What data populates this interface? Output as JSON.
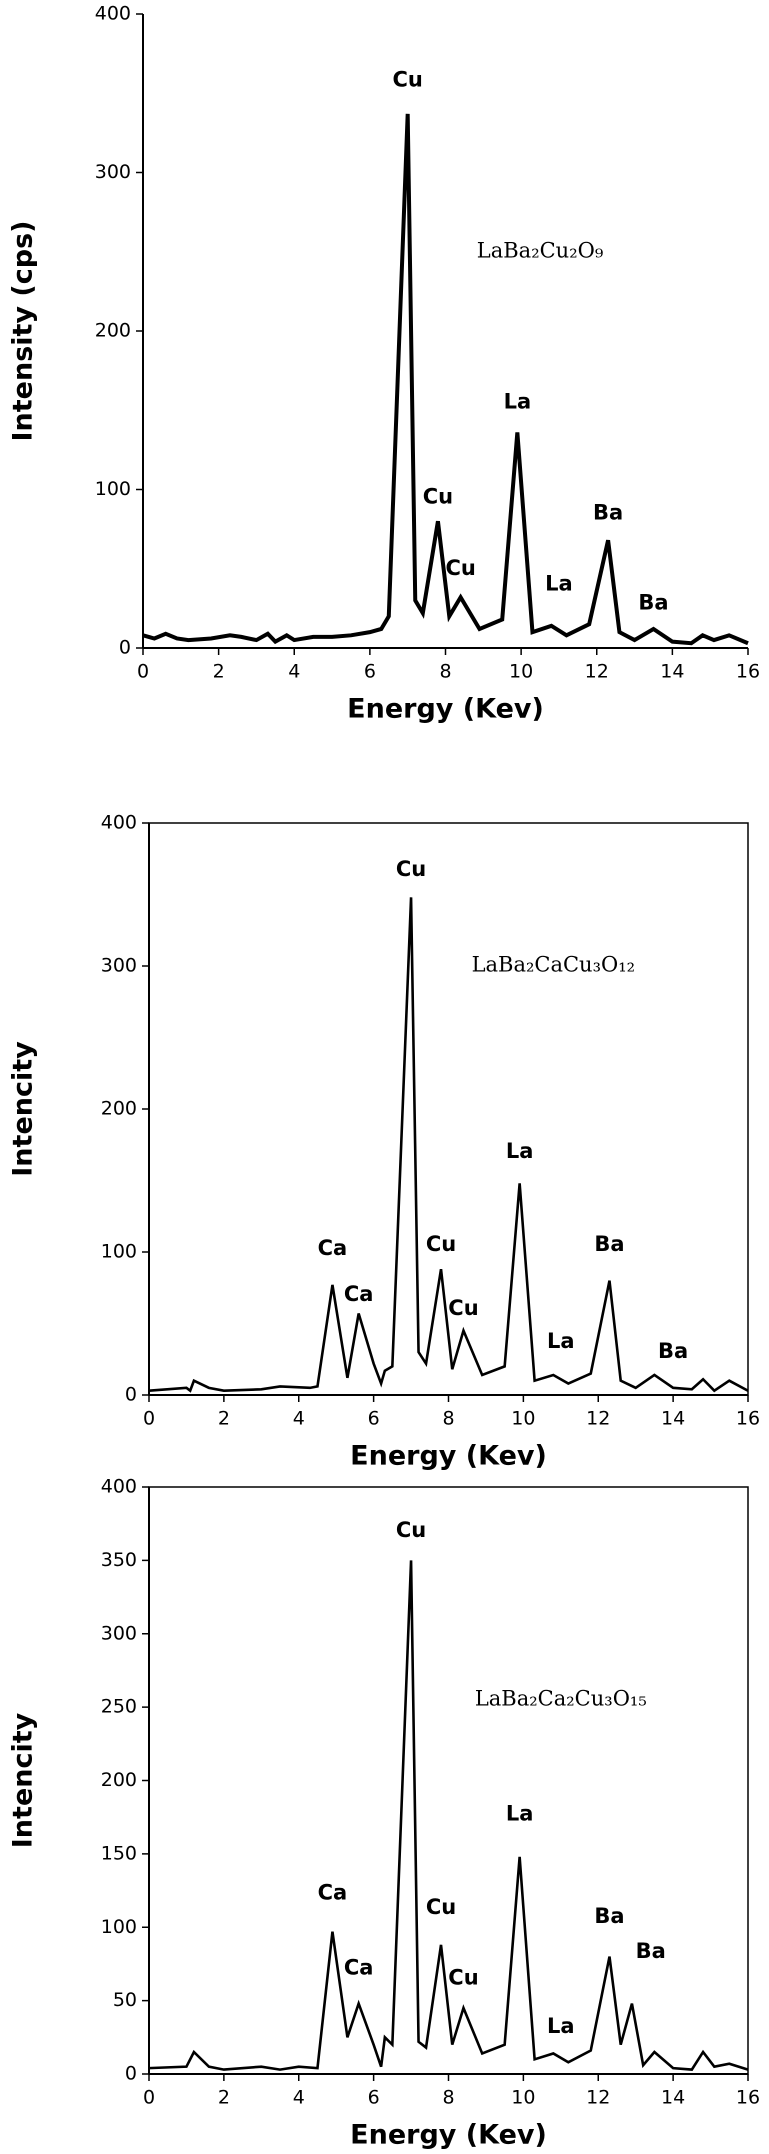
{
  "chart_data": [
    {
      "type": "line",
      "xlabel": "Energy (Kev)",
      "ylabel": "Intensity (cps)",
      "label": "LaBa₂Cu₂O₉",
      "annotations": [
        "Cu",
        "Cu",
        "Cu",
        "La",
        "La",
        "Ba",
        "Ba"
      ],
      "x": [
        0,
        0.3,
        0.6,
        0.9,
        1.2,
        1.8,
        2.3,
        2.6,
        3.0,
        3.3,
        3.5,
        3.8,
        4.0,
        4.5,
        5.0,
        5.5,
        6.0,
        6.3,
        6.5,
        7.0,
        7.2,
        7.4,
        7.8,
        8.1,
        8.4,
        8.9,
        9.5,
        9.9,
        10.3,
        10.8,
        11.2,
        11.8,
        12.3,
        12.6,
        13.0,
        13.5,
        14.0,
        14.5,
        14.8,
        15.1,
        15.5,
        16
      ],
      "series": [
        {
          "color": "#000000",
          "values": [
            8,
            6,
            9,
            6,
            5,
            6,
            8,
            7,
            5,
            9,
            4,
            8,
            5,
            7,
            7,
            8,
            10,
            12,
            20,
            337,
            30,
            22,
            80,
            20,
            32,
            12,
            18,
            136,
            10,
            14,
            8,
            15,
            68,
            10,
            5,
            12,
            4,
            3,
            8,
            5,
            8,
            3
          ]
        }
      ],
      "xlim": [
        0,
        16
      ],
      "xticks": [
        0,
        2,
        4,
        6,
        8,
        10,
        12,
        14,
        16
      ],
      "ylim": [
        0,
        400
      ],
      "yticks": [
        0,
        100,
        200,
        300,
        400
      ],
      "frame": false
    },
    {
      "type": "line",
      "xlabel": "Energy (Kev)",
      "ylabel": "Intencity",
      "label": "LaBa₂CaCu₃O₁₂",
      "annotations": [
        "Cu",
        "Ca",
        "Ca",
        "Cu",
        "Cu",
        "La",
        "La",
        "Ba",
        "Ba"
      ],
      "x": [
        0,
        1.0,
        1.1,
        1.2,
        1.6,
        2.0,
        3.0,
        3.5,
        4.3,
        4.5,
        4.9,
        5.3,
        5.6,
        6.0,
        6.2,
        6.3,
        6.5,
        7.0,
        7.2,
        7.4,
        7.8,
        8.1,
        8.4,
        8.9,
        9.5,
        9.9,
        10.3,
        10.8,
        11.2,
        11.8,
        12.3,
        12.6,
        13.0,
        13.5,
        14.0,
        14.5,
        14.8,
        15.1,
        15.5,
        16
      ],
      "series": [
        {
          "color": "#000000",
          "values": [
            3,
            5,
            3,
            10,
            5,
            3,
            4,
            6,
            5,
            6,
            77,
            12,
            57,
            22,
            8,
            17,
            20,
            348,
            30,
            22,
            88,
            18,
            45,
            14,
            20,
            148,
            10,
            14,
            8,
            15,
            80,
            10,
            5,
            14,
            5,
            4,
            11,
            3,
            10,
            3
          ]
        }
      ],
      "xlim": [
        0,
        16
      ],
      "xticks": [
        0,
        2,
        4,
        6,
        8,
        10,
        12,
        14,
        16
      ],
      "ylim": [
        0,
        400
      ],
      "yticks": [
        0,
        100,
        200,
        300,
        400
      ],
      "frame": true
    },
    {
      "type": "line",
      "xlabel": "Energy (Kev)",
      "ylabel": "Intencity",
      "label": "LaBa₂Ca₂Cu₃O₁₅",
      "annotations": [
        "Cu",
        "Ca",
        "Ca",
        "Cu",
        "Cu",
        "La",
        "La",
        "Ba",
        "Ba"
      ],
      "x": [
        0,
        1.0,
        1.2,
        1.6,
        2.0,
        3.0,
        3.5,
        4.0,
        4.5,
        4.9,
        5.3,
        5.6,
        6.0,
        6.2,
        6.3,
        6.5,
        7.0,
        7.2,
        7.4,
        7.8,
        8.1,
        8.4,
        8.9,
        9.5,
        9.9,
        10.3,
        10.8,
        11.2,
        11.8,
        12.3,
        12.6,
        12.9,
        13.2,
        13.5,
        14.0,
        14.5,
        14.8,
        15.1,
        15.5,
        16
      ],
      "series": [
        {
          "color": "#000000",
          "values": [
            4,
            5,
            15,
            5,
            3,
            5,
            3,
            5,
            4,
            97,
            25,
            48,
            20,
            5,
            25,
            20,
            350,
            22,
            18,
            88,
            20,
            45,
            14,
            20,
            148,
            10,
            14,
            8,
            16,
            80,
            20,
            48,
            6,
            15,
            4,
            3,
            15,
            5,
            7,
            3
          ]
        }
      ],
      "xlim": [
        0,
        16
      ],
      "xticks": [
        0,
        2,
        4,
        6,
        8,
        10,
        12,
        14,
        16
      ],
      "ylim": [
        0,
        400
      ],
      "yticks": [
        0,
        50,
        100,
        150,
        200,
        250,
        300,
        350,
        400
      ],
      "frame": true
    }
  ]
}
